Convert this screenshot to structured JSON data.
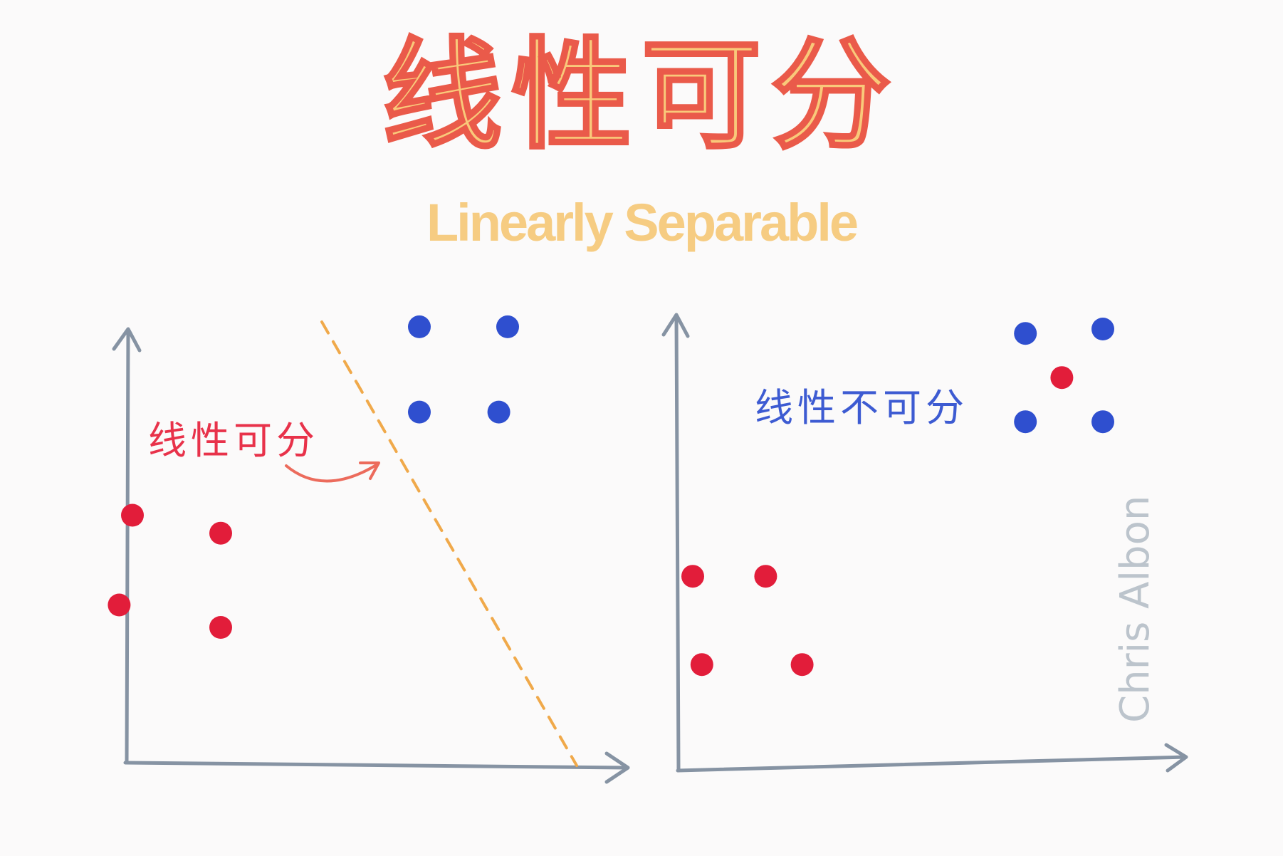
{
  "title": {
    "chinese": "线性可分",
    "english": "Linearly Separable"
  },
  "left_panel": {
    "label": "线性可分",
    "label_color": "#e8324a",
    "red_points": [
      [
        0.3,
        0.55
      ],
      [
        0.5,
        0.51
      ],
      [
        0.27,
        0.35
      ],
      [
        0.5,
        0.3
      ]
    ],
    "blue_points": [
      [
        0.95,
        0.97
      ],
      [
        1.15,
        0.97
      ],
      [
        0.95,
        0.78
      ],
      [
        1.13,
        0.78
      ]
    ]
  },
  "right_panel": {
    "label": "线性不可分",
    "red_points": [
      [
        0.2,
        0.44
      ],
      [
        0.36,
        0.44
      ],
      [
        0.22,
        0.24
      ],
      [
        0.44,
        0.24
      ],
      [
        1.01,
        0.89
      ]
    ],
    "blue_points": [
      [
        0.93,
        0.99
      ],
      [
        1.1,
        1.0
      ],
      [
        0.93,
        0.79
      ],
      [
        1.1,
        0.79
      ]
    ],
    "label_color": "#3d5bd2"
  },
  "colors": {
    "red": "#e21d3a",
    "blue": "#2f4fcf",
    "axis": "#8693a3",
    "divider": "#f0a94a",
    "arrow": "#ec6b5c"
  },
  "signature": "Chris Albon"
}
